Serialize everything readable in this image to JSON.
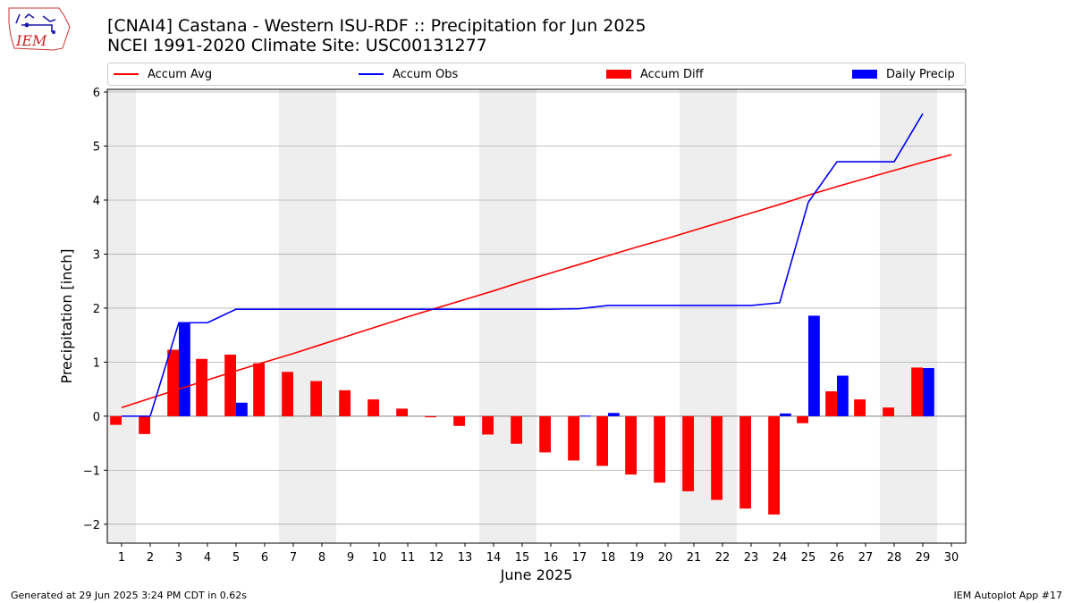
{
  "header": {
    "title_line1": "[CNAI4] Castana - Western ISU-RDF :: Precipitation for Jun 2025",
    "title_line2": "NCEI 1991-2020 Climate Site: USC00131277",
    "logo_text": "IEM"
  },
  "footer": {
    "generated": "Generated at 29 Jun 2025 3:24 PM CDT in 0.62s",
    "app": "IEM Autoplot App #17"
  },
  "colors": {
    "avg": "#ff0000",
    "obs": "#0000ff",
    "diff": "#ff0000",
    "daily": "#0000ff",
    "weekend_shade": "#eeeeee",
    "grid": "#b0b0b0"
  },
  "chart_data": {
    "type": "bar",
    "xlabel": "June 2025",
    "ylabel": "Precipitation [inch]",
    "xlim": [
      0.5,
      30.5
    ],
    "ylim": [
      -2.35,
      6.05
    ],
    "yticks": [
      -2,
      -1,
      0,
      1,
      2,
      3,
      4,
      5,
      6
    ],
    "days": [
      1,
      2,
      3,
      4,
      5,
      6,
      7,
      8,
      9,
      10,
      11,
      12,
      13,
      14,
      15,
      16,
      17,
      18,
      19,
      20,
      21,
      22,
      23,
      24,
      25,
      26,
      27,
      28,
      29,
      30
    ],
    "grid": true,
    "legend_position": "top",
    "weekend_days": [
      1,
      7,
      8,
      14,
      15,
      21,
      22,
      28,
      29
    ],
    "series": [
      {
        "name": "Accum Avg",
        "kind": "line",
        "days": [
          1,
          2,
          3,
          4,
          5,
          6,
          7,
          8,
          9,
          10,
          11,
          12,
          13,
          14,
          15,
          16,
          17,
          18,
          19,
          20,
          21,
          22,
          23,
          24,
          25,
          26,
          27,
          28,
          29,
          30
        ],
        "values": [
          0.16,
          0.33,
          0.5,
          0.67,
          0.84,
          1.0,
          1.16,
          1.33,
          1.5,
          1.67,
          1.84,
          2.0,
          2.16,
          2.32,
          2.49,
          2.65,
          2.81,
          2.97,
          3.13,
          3.28,
          3.44,
          3.6,
          3.76,
          3.92,
          4.09,
          4.25,
          4.4,
          4.55,
          4.7,
          4.84
        ]
      },
      {
        "name": "Accum Obs",
        "kind": "line",
        "days": [
          1,
          2,
          3,
          4,
          5,
          6,
          7,
          8,
          9,
          10,
          11,
          12,
          13,
          14,
          15,
          16,
          17,
          18,
          19,
          20,
          21,
          22,
          23,
          24,
          25,
          26,
          27,
          28,
          29
        ],
        "values": [
          0.0,
          0.0,
          1.73,
          1.73,
          1.98,
          1.98,
          1.98,
          1.98,
          1.98,
          1.98,
          1.98,
          1.98,
          1.98,
          1.98,
          1.98,
          1.98,
          1.99,
          2.05,
          2.05,
          2.05,
          2.05,
          2.05,
          2.05,
          2.1,
          3.96,
          4.71,
          4.71,
          4.71,
          5.6
        ]
      },
      {
        "name": "Accum Diff",
        "kind": "bar",
        "offset": "left",
        "days": [
          1,
          2,
          3,
          4,
          5,
          6,
          7,
          8,
          9,
          10,
          11,
          12,
          13,
          14,
          15,
          16,
          17,
          18,
          19,
          20,
          21,
          22,
          23,
          24,
          25,
          26,
          27,
          28,
          29
        ],
        "values": [
          -0.16,
          -0.33,
          1.23,
          1.06,
          1.14,
          0.98,
          0.82,
          0.65,
          0.48,
          0.31,
          0.14,
          -0.02,
          -0.18,
          -0.34,
          -0.51,
          -0.67,
          -0.82,
          -0.92,
          -1.08,
          -1.23,
          -1.39,
          -1.55,
          -1.71,
          -1.82,
          -0.13,
          0.46,
          0.31,
          0.16,
          0.9
        ]
      },
      {
        "name": "Daily Precip",
        "kind": "bar",
        "offset": "right",
        "days": [
          1,
          2,
          3,
          4,
          5,
          6,
          7,
          8,
          9,
          10,
          11,
          12,
          13,
          14,
          15,
          16,
          17,
          18,
          19,
          20,
          21,
          22,
          23,
          24,
          25,
          26,
          27,
          28,
          29
        ],
        "values": [
          0.0,
          0.0,
          1.73,
          0.0,
          0.25,
          0.0,
          0.0,
          0.0,
          0.0,
          0.0,
          0.0,
          0.0,
          0.0,
          0.0,
          0.0,
          0.0,
          0.01,
          0.06,
          0.0,
          0.0,
          0.0,
          0.0,
          0.0,
          0.05,
          1.86,
          0.75,
          0.0,
          0.0,
          0.89
        ]
      }
    ]
  }
}
